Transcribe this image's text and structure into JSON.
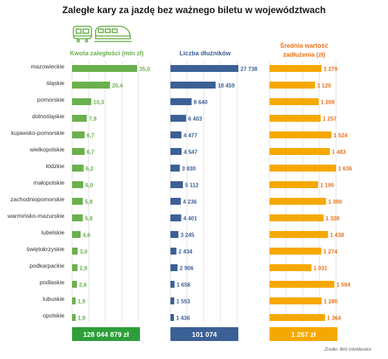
{
  "title": "Zaległe kary za jazdę bez ważnego biletu w województwach",
  "source": "Źródło: BIG InfoMonitor",
  "colors": {
    "green": "#6ab04c",
    "blue": "#3b6096",
    "orange": "#f5a800",
    "orange_text": "#e8711a",
    "grid": "#e2e2e2",
    "green_total": "#2e9e3a",
    "blue_total": "#3b6096"
  },
  "icons": [
    "train-icon",
    "high-speed-train-icon"
  ],
  "chart_data": [
    {
      "type": "bar",
      "orientation": "horizontal",
      "title": "Kwota zaległości (mln zł)",
      "categories": [
        "mazowieckie",
        "śląskie",
        "pomorskie",
        "dolnośląskie",
        "kujawsko-pomorskie",
        "wielkopolskie",
        "łódzkie",
        "małopolskie",
        "zachodniopomorskie",
        "warmińsko-mazurskie",
        "lubelskie",
        "świętokrzyskie",
        "podkarpackie",
        "podlaskie",
        "lubuskie",
        "opolskie"
      ],
      "values": [
        35.0,
        20.4,
        10.3,
        7.9,
        6.7,
        6.7,
        6.2,
        6.0,
        5.8,
        5.8,
        4.6,
        3.0,
        2.9,
        2.6,
        1.9,
        1.9
      ],
      "labels": [
        "35,0",
        "20,4",
        "10,3",
        "7,9",
        "6,7",
        "6,7",
        "6,2",
        "6,0",
        "5,8",
        "5,8",
        "4,6",
        "3,0",
        "2,9",
        "2,6",
        "1,9",
        "1,9"
      ],
      "total": "128 044 879 zł",
      "grid": true
    },
    {
      "type": "bar",
      "orientation": "horizontal",
      "title": "Liczba dłużników",
      "values": [
        27738,
        18459,
        8640,
        6403,
        4477,
        4547,
        3830,
        5112,
        4236,
        4401,
        3245,
        2434,
        2906,
        1658,
        1553,
        1436
      ],
      "labels": [
        "27 738",
        "18 459",
        "8 640",
        "6 403",
        "4 477",
        "4 547",
        "3 830",
        "5 112",
        "4 236",
        "4 401",
        "3 245",
        "2 434",
        "2 906",
        "1 658",
        "1 553",
        "1 436"
      ],
      "total": "101 074",
      "grid": true
    },
    {
      "type": "bar",
      "orientation": "horizontal",
      "title": "Średnia wartość zadłużenia (zł)",
      "values": [
        1279,
        1120,
        1209,
        1257,
        1524,
        1483,
        1636,
        1195,
        1390,
        1328,
        1438,
        1274,
        1031,
        1594,
        1280,
        1364
      ],
      "labels": [
        "1 279",
        "1 120",
        "1 209",
        "1 257",
        "1 524",
        "1 483",
        "1 636",
        "1 195",
        "1 390",
        "1 328",
        "1 438",
        "1 274",
        "1 031",
        "1 594",
        "1 280",
        "1 364"
      ],
      "total": "1 267 zł",
      "grid": true
    }
  ]
}
